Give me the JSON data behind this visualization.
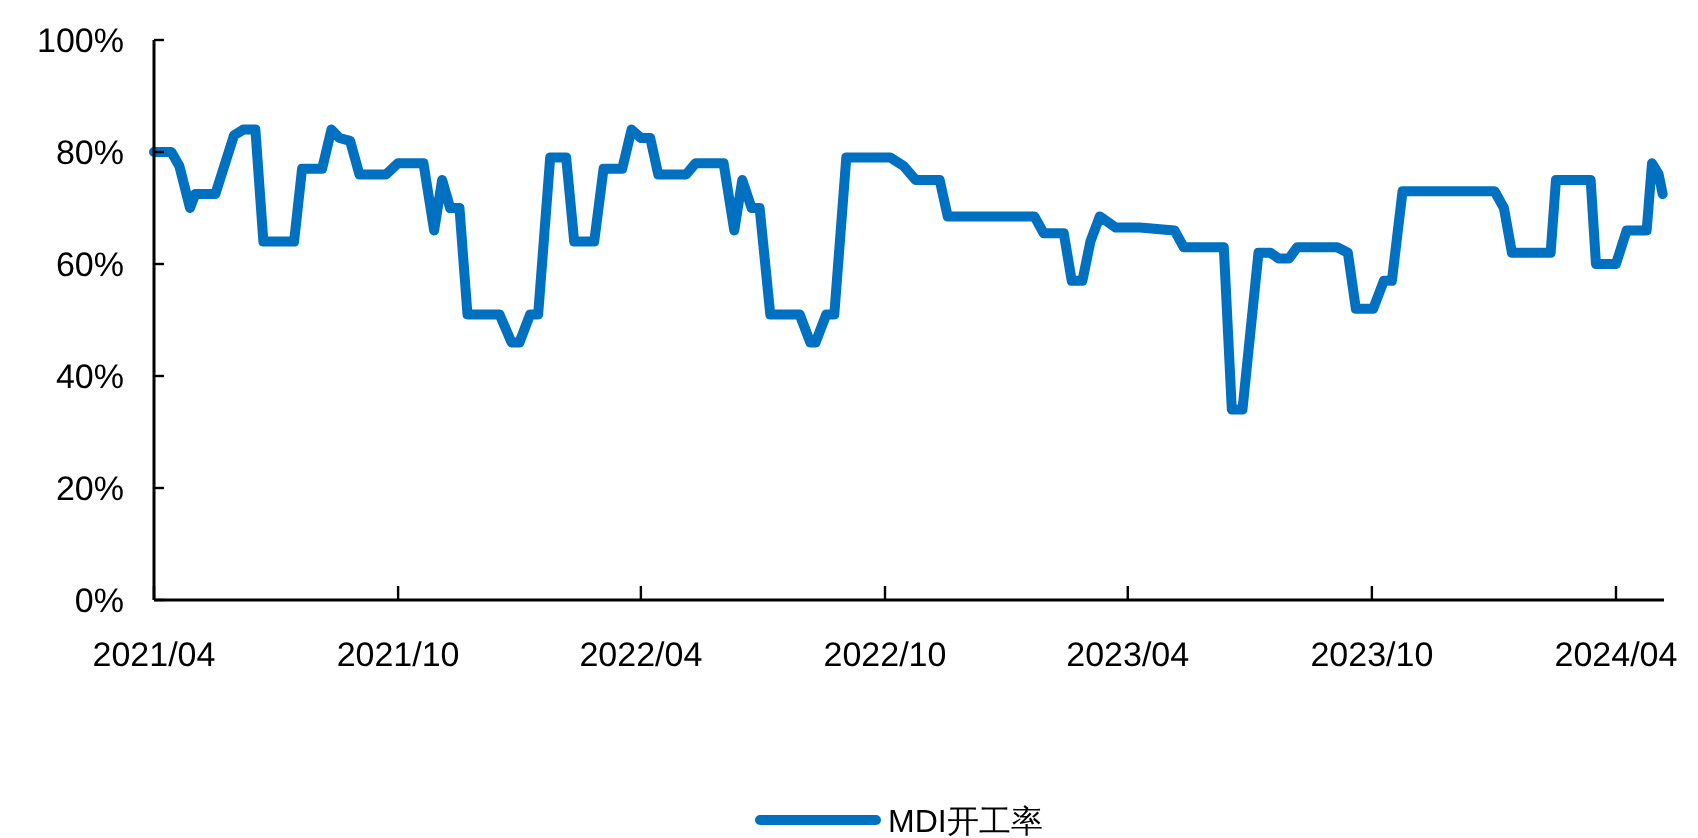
{
  "chart_data": {
    "type": "line",
    "x": [
      "2021-04-01",
      "2021-04-14",
      "2021-04-20",
      "2021-04-28",
      "2021-05-02",
      "2021-05-17",
      "2021-05-31",
      "2021-06-07",
      "2021-06-16",
      "2021-06-22",
      "2021-07-15",
      "2021-07-21",
      "2021-08-05",
      "2021-08-12",
      "2021-08-18",
      "2021-08-26",
      "2021-09-02",
      "2021-09-22",
      "2021-10-01",
      "2021-10-20",
      "2021-10-28",
      "2021-11-03",
      "2021-11-09",
      "2021-11-16",
      "2021-11-22",
      "2021-12-16",
      "2021-12-25",
      "2021-12-31",
      "2022-01-08",
      "2022-01-14",
      "2022-01-23",
      "2022-02-04",
      "2022-02-10",
      "2022-02-25",
      "2022-03-04",
      "2022-03-18",
      "2022-03-25",
      "2022-04-01",
      "2022-04-08",
      "2022-04-14",
      "2022-05-05",
      "2022-05-12",
      "2022-06-02",
      "2022-06-10",
      "2022-06-16",
      "2022-06-23",
      "2022-06-29",
      "2022-07-07",
      "2022-07-29",
      "2022-08-06",
      "2022-08-10",
      "2022-08-18",
      "2022-08-24",
      "2022-09-02",
      "2022-10-05",
      "2022-10-15",
      "2022-10-24",
      "2022-11-11",
      "2022-11-17",
      "2023-01-21",
      "2023-01-28",
      "2023-02-12",
      "2023-02-18",
      "2023-02-26",
      "2023-03-04",
      "2023-03-11",
      "2023-03-23",
      "2023-04-10",
      "2023-05-06",
      "2023-05-13",
      "2023-06-12",
      "2023-06-18",
      "2023-06-26",
      "2023-07-08",
      "2023-07-17",
      "2023-07-23",
      "2023-07-31",
      "2023-08-06",
      "2023-09-05",
      "2023-09-13",
      "2023-09-19",
      "2023-10-02",
      "2023-10-10",
      "2023-10-16",
      "2023-10-24",
      "2024-01-01",
      "2024-01-08",
      "2024-01-14",
      "2024-02-12",
      "2024-02-16",
      "2024-03-13",
      "2024-03-17",
      "2024-04-01",
      "2024-04-09",
      "2024-04-24",
      "2024-04-28",
      "2024-05-03",
      "2024-05-06"
    ],
    "series": [
      {
        "name": "MDI开工率",
        "color": "#0070c0",
        "values": [
          80,
          80,
          77.5,
          70,
          72.5,
          72.5,
          83,
          84,
          84,
          64,
          64,
          77,
          77,
          84,
          82.5,
          82,
          76,
          76,
          78,
          78,
          66,
          75,
          70,
          70,
          51,
          51,
          46,
          46,
          51,
          51,
          79,
          79,
          64,
          64,
          77,
          77,
          84,
          82.5,
          82.5,
          76,
          76,
          78,
          78,
          66,
          75,
          70,
          70,
          51,
          51,
          46,
          46,
          51,
          51,
          79,
          79,
          77.5,
          75,
          75,
          68.5,
          68.5,
          65.5,
          65.5,
          57,
          57,
          64,
          68.5,
          66.5,
          66.5,
          66,
          63,
          63,
          34,
          34,
          62,
          62,
          61,
          61,
          63,
          63,
          62,
          52,
          52,
          57,
          57,
          73,
          73,
          70,
          62,
          62,
          75,
          75,
          60,
          60,
          66,
          66,
          78,
          76,
          72.5
        ]
      }
    ],
    "xlim": [
      "2021-04-01",
      "2024-05-07"
    ],
    "xticks": [
      {
        "value": "2021-04-01",
        "label": "2021/04"
      },
      {
        "value": "2021-10-01",
        "label": "2021/10"
      },
      {
        "value": "2022-04-01",
        "label": "2022/04"
      },
      {
        "value": "2022-10-01",
        "label": "2022/10"
      },
      {
        "value": "2023-04-01",
        "label": "2023/04"
      },
      {
        "value": "2023-10-01",
        "label": "2023/10"
      },
      {
        "value": "2024-04-01",
        "label": "2024/04"
      }
    ],
    "ylim": [
      0,
      100
    ],
    "yticks": [
      {
        "value": 0,
        "label": "0%"
      },
      {
        "value": 20,
        "label": "20%"
      },
      {
        "value": 40,
        "label": "40%"
      },
      {
        "value": 60,
        "label": "60%"
      },
      {
        "value": 80,
        "label": "80%"
      },
      {
        "value": 100,
        "label": "100%"
      }
    ],
    "grid": false,
    "legend": "bottom"
  }
}
